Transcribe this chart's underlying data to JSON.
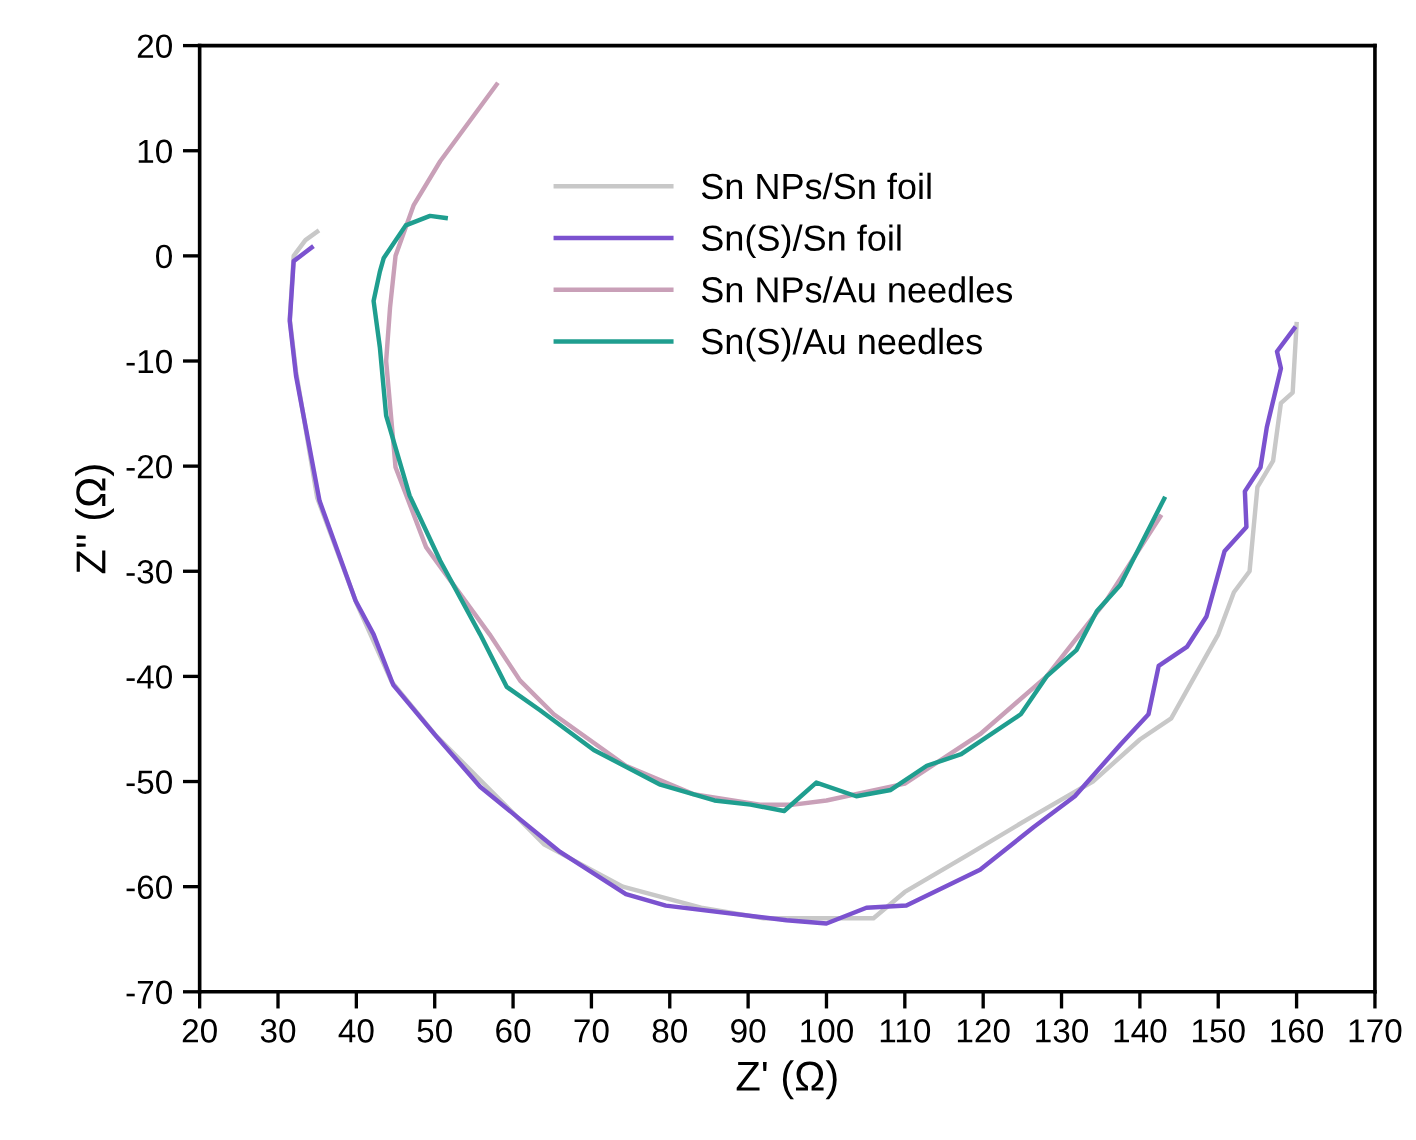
{
  "chart_data": {
    "type": "line",
    "xlabel": "Z' (Ω)",
    "ylabel": "Z'' (Ω)",
    "xlim": [
      20,
      170
    ],
    "ylim": [
      -70,
      20
    ],
    "xticks": [
      20,
      30,
      40,
      50,
      60,
      70,
      80,
      90,
      100,
      110,
      120,
      130,
      140,
      150,
      160,
      170
    ],
    "yticks": [
      -70,
      -60,
      -50,
      -40,
      -30,
      -20,
      -10,
      0,
      10,
      20
    ],
    "grid": false,
    "legend": "top right",
    "marker": "none",
    "line_style": "solid",
    "series": [
      {
        "name": "Sn NPs/Sn foil",
        "color": "#c8c8c8",
        "x": [
          35,
          33.5,
          32,
          31.5,
          32.3,
          35,
          40,
          44.5,
          50,
          56,
          64,
          74,
          84,
          92,
          100,
          106,
          110,
          118,
          127,
          134,
          140,
          144,
          147,
          150,
          152,
          154,
          155,
          157,
          158,
          159.5,
          160
        ],
        "values": [
          2.3,
          1.5,
          0,
          -6,
          -11,
          -23,
          -33,
          -40.5,
          -45.5,
          -50,
          -56,
          -60,
          -62,
          -63,
          -63,
          -63,
          -60.5,
          -57,
          -53,
          -50,
          -46,
          -44,
          -40,
          -36,
          -32,
          -30,
          -22,
          -19.5,
          -14,
          -13,
          -6.5
        ]
      },
      {
        "name": "Sn(S)/Sn foil",
        "color": "#7b52cf",
        "x": [
          34.3,
          32,
          31.5,
          32.3,
          35.3,
          39.9,
          42.2,
          44.7,
          50.2,
          55.8,
          66,
          74.4,
          79.5,
          94.9,
          100,
          105.1,
          110.2,
          119.6,
          126.5,
          131.7,
          137.5,
          141.1,
          142.4,
          146,
          148.5,
          150.8,
          153.6,
          153.4,
          155.4,
          156.2,
          158,
          157.5,
          159.7
        ],
        "values": [
          0.8,
          -0.5,
          -6.2,
          -11.4,
          -23.3,
          -32.8,
          -36,
          -40.8,
          -45.7,
          -50.5,
          -56.7,
          -60.7,
          -61.8,
          -63.2,
          -63.5,
          -62,
          -61.8,
          -58.4,
          -54.3,
          -51.4,
          -46.5,
          -43.6,
          -39,
          -37.2,
          -34.3,
          -28.1,
          -25.8,
          -22.4,
          -20.1,
          -16.3,
          -10.7,
          -9.1,
          -6.9
        ]
      },
      {
        "name": "Sn NPs/Au needles",
        "color": "#c9a0b8",
        "x": [
          57.9,
          50.7,
          47.3,
          45,
          44.3,
          43.8,
          45,
          48.9,
          57,
          60.9,
          65.2,
          74.4,
          83,
          91.5,
          95.8,
          100,
          110,
          119.6,
          128.1,
          135.7,
          142.6
        ],
        "values": [
          16.3,
          9.0,
          4.8,
          0,
          -4.9,
          -10,
          -20.1,
          -27.7,
          -36,
          -40.4,
          -43.6,
          -48.5,
          -51.2,
          -52.2,
          -52.2,
          -51.8,
          -50.2,
          -45.5,
          -40,
          -32.8,
          -24.8
        ]
      },
      {
        "name": "Sn(S)/Au needles",
        "color": "#1f9e8f",
        "x": [
          51.4,
          49.4,
          46.3,
          43.5,
          43,
          42.2,
          43,
          43.8,
          46.8,
          50.7,
          55.8,
          59.2,
          63.4,
          70.3,
          78.8,
          85.7,
          90.3,
          94.6,
          98.7,
          103.8,
          108.2,
          112.8,
          117.2,
          124.8,
          128.1,
          131.9,
          134.5,
          137.5,
          143.1
        ],
        "values": [
          3.6,
          3.8,
          2.9,
          -0.2,
          -1.5,
          -4.3,
          -8.7,
          -15.2,
          -22.8,
          -29,
          -36,
          -41,
          -43.2,
          -47,
          -50.3,
          -51.8,
          -52.2,
          -52.8,
          -50.1,
          -51.4,
          -50.8,
          -48.5,
          -47.4,
          -43.6,
          -40,
          -37.5,
          -33.8,
          -31.3,
          -23.1
        ]
      }
    ]
  }
}
